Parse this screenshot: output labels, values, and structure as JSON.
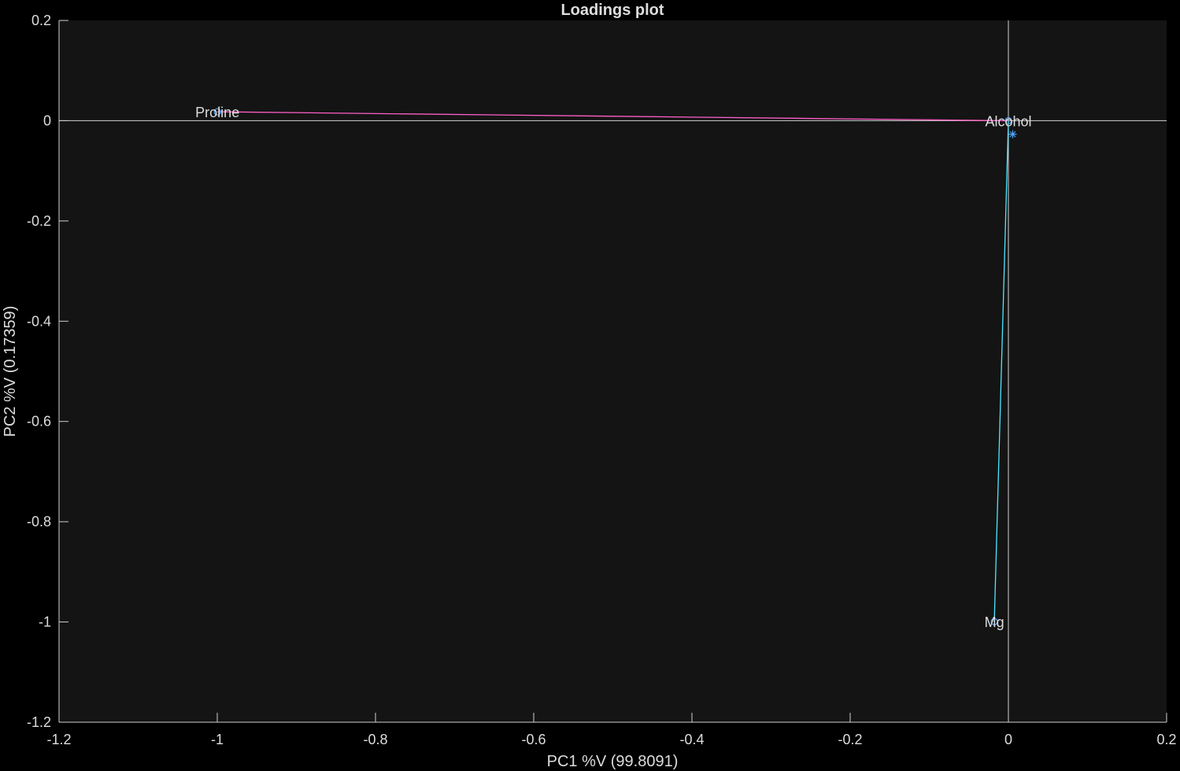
{
  "chart_data": {
    "type": "scatter",
    "title": "Loadings plot",
    "xlabel": "PC1 %V (99.8091)",
    "ylabel": "PC2 %V (0.17359)",
    "xlim": [
      -1.2,
      0.2
    ],
    "ylim": [
      -1.2,
      0.2
    ],
    "xticks": [
      -1.2,
      -1,
      -0.8,
      -0.6,
      -0.4,
      -0.2,
      0,
      0.2
    ],
    "yticks": [
      -1.2,
      -1,
      -0.8,
      -0.6,
      -0.4,
      -0.2,
      0,
      0.2
    ],
    "xtick_labels": [
      "-1.2",
      "-1",
      "-0.8",
      "-0.6",
      "-0.4",
      "-0.2",
      "0",
      "0.2"
    ],
    "ytick_labels": [
      "-1.2",
      "-1",
      "-0.8",
      "-0.6",
      "-0.4",
      "-0.2",
      "0",
      "0.2"
    ],
    "grid": false,
    "origin_lines": true,
    "points": [
      {
        "label": "Proline",
        "x": -0.9998,
        "y": 0.0178,
        "color": "#ff5fc8"
      },
      {
        "label": "Alcohol",
        "x": 0.0,
        "y": 0.0,
        "color": "#4db8ff"
      },
      {
        "label": "Mg",
        "x": -0.0178,
        "y": -0.9993,
        "color": "#4de8ff"
      }
    ],
    "unlabeled_points": [
      {
        "x": 0.0055,
        "y": -0.027,
        "marker": "asterisk",
        "color": "#4da6ff"
      }
    ],
    "colors": {
      "background": "#000000",
      "plot_area": "#141414",
      "axis": "#d0d0d0",
      "text": "#dddddd",
      "proline_vector": "#ff5fc8",
      "mg_vector": "#4de8ff",
      "marker": "#4da6ff"
    }
  }
}
